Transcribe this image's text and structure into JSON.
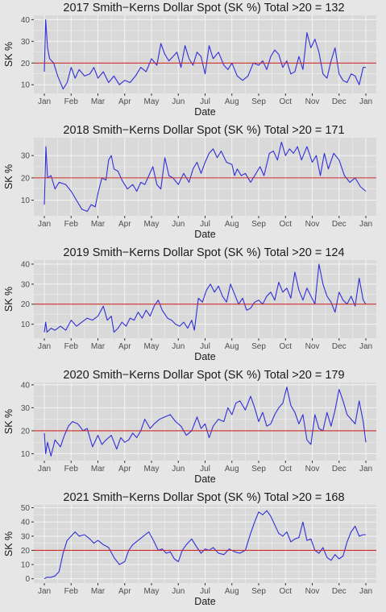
{
  "colors": {
    "page_background": "#e6e6e6",
    "panel_background": "#d9d9d9",
    "grid": "#f2f2f2",
    "series_line": "#2f2fd8",
    "threshold_line": "#cc2929"
  },
  "chart_data": [
    {
      "type": "line",
      "title": "2017  Smith−Kerns Dollar Spot (SK %)    Total >20 = 132",
      "xlabel": "Date",
      "ylabel": "SK %",
      "categories": [
        "Jan",
        "Feb",
        "Mar",
        "Apr",
        "May",
        "Jun",
        "Jul",
        "Aug",
        "Sep",
        "Oct",
        "Nov",
        "Dec",
        "Jan"
      ],
      "yticks": [
        10,
        20,
        30,
        40
      ],
      "ylim": [
        6,
        42
      ],
      "threshold": 20,
      "grid": true,
      "series": [
        {
          "x": [
            0,
            0.05,
            0.12,
            0.2,
            0.35,
            0.5,
            0.7,
            0.85,
            1.0,
            1.15,
            1.3,
            1.5,
            1.7,
            1.85,
            2.0,
            2.2,
            2.4,
            2.6,
            2.8,
            3.0,
            3.2,
            3.4,
            3.6,
            3.8,
            4.0,
            4.2,
            4.35,
            4.5,
            4.65,
            4.8,
            4.95,
            5.1,
            5.25,
            5.4,
            5.55,
            5.7,
            5.85,
            6.0,
            6.15,
            6.3,
            6.5,
            6.7,
            6.85,
            7.0,
            7.2,
            7.4,
            7.6,
            7.8,
            8.0,
            8.15,
            8.3,
            8.45,
            8.6,
            8.75,
            8.9,
            9.05,
            9.2,
            9.35,
            9.5,
            9.65,
            9.8,
            9.95,
            10.1,
            10.25,
            10.4,
            10.55,
            10.7,
            10.85,
            11.0,
            11.15,
            11.3,
            11.45,
            11.6,
            11.75,
            11.9,
            12.0
          ],
          "y": [
            16,
            40,
            27,
            22,
            20,
            14,
            8,
            11,
            18,
            13,
            17,
            14,
            15,
            18,
            13,
            16,
            11,
            14,
            10,
            12,
            11,
            14,
            18,
            16,
            22,
            19,
            29,
            24,
            21,
            23,
            25,
            18,
            28,
            22,
            19,
            25,
            23,
            15,
            28,
            22,
            25,
            19,
            17,
            20,
            14,
            12,
            14,
            20,
            19,
            21,
            17,
            23,
            26,
            24,
            18,
            21,
            15,
            16,
            23,
            17,
            34,
            27,
            31,
            25,
            15,
            13,
            21,
            27,
            15,
            12,
            11,
            15,
            14,
            10,
            18,
            18
          ]
        }
      ]
    },
    {
      "type": "line",
      "title": "2018  Smith−Kerns Dollar Spot (SK %)    Total >20 = 171",
      "xlabel": "Date",
      "ylabel": "SK %",
      "categories": [
        "Jan",
        "Feb",
        "Mar",
        "Apr",
        "May",
        "Jun",
        "Jul",
        "Aug",
        "Sep",
        "Oct",
        "Nov",
        "Dec",
        "Jan"
      ],
      "yticks": [
        10,
        20,
        30
      ],
      "ylim": [
        3,
        38
      ],
      "threshold": 20,
      "grid": true,
      "series": [
        {
          "x": [
            0,
            0.06,
            0.12,
            0.25,
            0.4,
            0.55,
            0.8,
            1.0,
            1.2,
            1.4,
            1.6,
            1.75,
            1.9,
            2.0,
            2.15,
            2.3,
            2.4,
            2.5,
            2.6,
            2.75,
            2.9,
            3.1,
            3.3,
            3.45,
            3.6,
            3.75,
            3.9,
            4.05,
            4.2,
            4.35,
            4.5,
            4.65,
            4.8,
            5.0,
            5.2,
            5.4,
            5.55,
            5.7,
            5.85,
            6.0,
            6.15,
            6.3,
            6.45,
            6.6,
            6.8,
            7.0,
            7.1,
            7.2,
            7.35,
            7.5,
            7.7,
            7.9,
            8.05,
            8.2,
            8.4,
            8.55,
            8.7,
            8.85,
            9.0,
            9.15,
            9.3,
            9.45,
            9.6,
            9.8,
            10.0,
            10.15,
            10.3,
            10.45,
            10.6,
            10.8,
            11.0,
            11.2,
            11.4,
            11.6,
            11.8,
            12.0
          ],
          "y": [
            8,
            34,
            20,
            21,
            15,
            18,
            17,
            14,
            10,
            6,
            5,
            8,
            7,
            13,
            20,
            19,
            28,
            30,
            24,
            23,
            19,
            15,
            17,
            14,
            18,
            17,
            21,
            25,
            17,
            15,
            29,
            21,
            20,
            17,
            22,
            18,
            24,
            27,
            22,
            27,
            31,
            33,
            29,
            32,
            27,
            26,
            21,
            24,
            21,
            22,
            18,
            22,
            25,
            21,
            31,
            32,
            28,
            36,
            30,
            33,
            31,
            34,
            28,
            34,
            27,
            30,
            21,
            31,
            24,
            31,
            28,
            21,
            18,
            20,
            16,
            14
          ]
        }
      ]
    },
    {
      "type": "line",
      "title": "2019  Smith−Kerns Dollar Spot (SK %)    Total >20 = 124",
      "xlabel": "Date",
      "ylabel": "SK %",
      "categories": [
        "Jan",
        "Feb",
        "Mar",
        "Apr",
        "May",
        "Jun",
        "Jul",
        "Aug",
        "Sep",
        "Oct",
        "Nov",
        "Dec",
        "Jan"
      ],
      "yticks": [
        10,
        20,
        30,
        40
      ],
      "ylim": [
        3,
        42
      ],
      "threshold": 20,
      "grid": true,
      "series": [
        {
          "x": [
            0,
            0.05,
            0.1,
            0.25,
            0.4,
            0.6,
            0.8,
            1.0,
            1.2,
            1.4,
            1.6,
            1.8,
            2.0,
            2.2,
            2.35,
            2.5,
            2.6,
            2.75,
            2.9,
            3.05,
            3.2,
            3.35,
            3.5,
            3.65,
            3.8,
            3.95,
            4.1,
            4.25,
            4.4,
            4.5,
            4.6,
            4.75,
            4.9,
            5.05,
            5.2,
            5.35,
            5.5,
            5.6,
            5.75,
            5.9,
            6.05,
            6.2,
            6.35,
            6.5,
            6.65,
            6.8,
            6.95,
            7.1,
            7.25,
            7.4,
            7.55,
            7.7,
            7.85,
            8.0,
            8.15,
            8.3,
            8.45,
            8.6,
            8.75,
            8.9,
            9.05,
            9.2,
            9.35,
            9.5,
            9.65,
            9.8,
            9.95,
            10.1,
            10.25,
            10.4,
            10.55,
            10.7,
            10.85,
            11.0,
            11.15,
            11.3,
            11.45,
            11.6,
            11.75,
            11.9,
            12.0
          ],
          "y": [
            6,
            11,
            6,
            8,
            7,
            9,
            7,
            12,
            9,
            11,
            13,
            12,
            14,
            19,
            12,
            14,
            6,
            8,
            11,
            9,
            13,
            12,
            16,
            13,
            17,
            14,
            19,
            22,
            17,
            15,
            13,
            12,
            10,
            9,
            11,
            8,
            12,
            7,
            23,
            21,
            27,
            30,
            26,
            29,
            24,
            21,
            30,
            25,
            20,
            23,
            17,
            18,
            21,
            22,
            20,
            24,
            26,
            22,
            31,
            26,
            28,
            23,
            36,
            27,
            22,
            28,
            24,
            20,
            40,
            30,
            24,
            21,
            16,
            26,
            22,
            20,
            24,
            19,
            33,
            22,
            20
          ]
        }
      ]
    },
    {
      "type": "line",
      "title": "2020  Smith−Kerns Dollar Spot (SK %)    Total >20 = 179",
      "xlabel": "Date",
      "ylabel": "SK %",
      "categories": [
        "Jan",
        "Feb",
        "Mar",
        "Apr",
        "May",
        "Jun",
        "Jul",
        "Aug",
        "Sep",
        "Oct",
        "Nov",
        "Dec",
        "Jan"
      ],
      "yticks": [
        10,
        20,
        30,
        40
      ],
      "ylim": [
        7,
        41
      ],
      "threshold": 20,
      "grid": true,
      "series": [
        {
          "x": [
            0,
            0.05,
            0.12,
            0.25,
            0.4,
            0.6,
            0.75,
            0.9,
            1.05,
            1.25,
            1.45,
            1.6,
            1.8,
            2.0,
            2.15,
            2.3,
            2.5,
            2.7,
            2.85,
            3.0,
            3.15,
            3.3,
            3.45,
            3.6,
            3.75,
            3.95,
            4.1,
            4.3,
            4.5,
            4.7,
            4.9,
            5.1,
            5.3,
            5.5,
            5.7,
            5.85,
            6.0,
            6.15,
            6.3,
            6.5,
            6.7,
            6.85,
            7.0,
            7.15,
            7.3,
            7.5,
            7.7,
            7.85,
            8.0,
            8.15,
            8.3,
            8.45,
            8.6,
            8.75,
            8.9,
            9.05,
            9.2,
            9.35,
            9.5,
            9.65,
            9.8,
            9.95,
            10.1,
            10.25,
            10.4,
            10.55,
            10.7,
            10.85,
            11.0,
            11.15,
            11.3,
            11.45,
            11.6,
            11.75,
            11.9,
            12.0
          ],
          "y": [
            19,
            10,
            15,
            9,
            16,
            13,
            18,
            22,
            24,
            23,
            20,
            21,
            13,
            18,
            14,
            16,
            18,
            12,
            17,
            15,
            16,
            19,
            17,
            20,
            25,
            21,
            23,
            25,
            26,
            27,
            24,
            22,
            18,
            20,
            26,
            21,
            23,
            17,
            22,
            25,
            24,
            30,
            27,
            32,
            33,
            29,
            35,
            30,
            24,
            28,
            22,
            23,
            27,
            30,
            32,
            39,
            31,
            28,
            23,
            27,
            16,
            14,
            27,
            21,
            20,
            28,
            22,
            29,
            38,
            33,
            27,
            25,
            23,
            33,
            24,
            15
          ]
        }
      ]
    },
    {
      "type": "line",
      "title": "2021  Smith−Kerns Dollar Spot (SK %)    Total >20 = 168",
      "xlabel": "Date",
      "ylabel": "SK %",
      "categories": [
        "Jan",
        "Feb",
        "Mar",
        "Apr",
        "May",
        "Jun",
        "Jul",
        "Aug",
        "Sep",
        "Oct",
        "Nov",
        "Dec",
        "Jan"
      ],
      "yticks": [
        0,
        10,
        20,
        30,
        40,
        50
      ],
      "ylim": [
        -3,
        52
      ],
      "threshold": 20,
      "grid": true,
      "series": [
        {
          "x": [
            0,
            0.1,
            0.25,
            0.4,
            0.55,
            0.7,
            0.85,
            1.0,
            1.15,
            1.3,
            1.5,
            1.7,
            1.85,
            2.0,
            2.2,
            2.4,
            2.6,
            2.8,
            3.0,
            3.15,
            3.3,
            3.5,
            3.7,
            3.9,
            4.1,
            4.25,
            4.4,
            4.55,
            4.7,
            4.85,
            5.0,
            5.15,
            5.3,
            5.5,
            5.7,
            5.85,
            6.0,
            6.15,
            6.3,
            6.5,
            6.7,
            6.9,
            7.1,
            7.3,
            7.5,
            7.7,
            7.85,
            8.0,
            8.15,
            8.3,
            8.45,
            8.6,
            8.75,
            8.9,
            9.05,
            9.2,
            9.35,
            9.5,
            9.65,
            9.8,
            9.95,
            10.1,
            10.25,
            10.4,
            10.55,
            10.7,
            10.85,
            11.0,
            11.15,
            11.3,
            11.45,
            11.6,
            11.75,
            11.9,
            12.0
          ],
          "y": [
            0,
            1,
            1,
            2,
            5,
            18,
            27,
            30,
            33,
            30,
            31,
            28,
            25,
            27,
            24,
            22,
            15,
            10,
            12,
            20,
            24,
            27,
            30,
            33,
            26,
            20,
            21,
            18,
            19,
            14,
            12,
            20,
            24,
            28,
            22,
            18,
            21,
            20,
            22,
            18,
            17,
            21,
            19,
            18,
            20,
            32,
            40,
            47,
            45,
            48,
            44,
            38,
            32,
            30,
            33,
            26,
            28,
            29,
            40,
            27,
            28,
            20,
            18,
            22,
            15,
            13,
            17,
            14,
            16,
            26,
            33,
            37,
            30,
            31,
            31
          ]
        }
      ]
    }
  ]
}
